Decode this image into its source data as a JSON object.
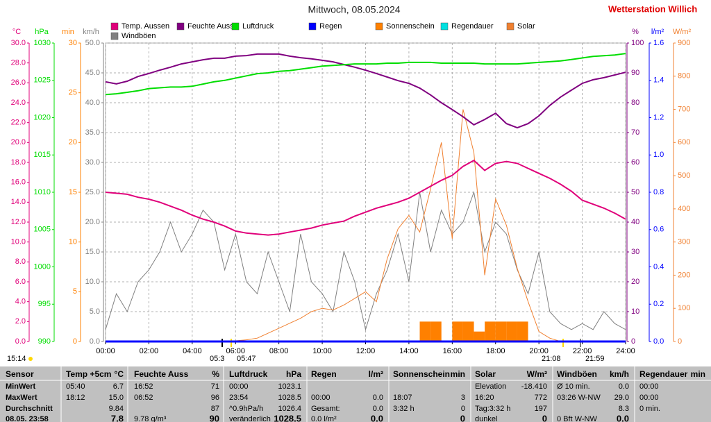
{
  "chart_data": {
    "type": "line",
    "title": "Mittwoch, 08.05.2024",
    "brand": "Wetterstation Willich",
    "x": [
      0,
      0.5,
      1,
      1.5,
      2,
      2.5,
      3,
      3.5,
      4,
      4.5,
      5,
      5.5,
      6,
      6.5,
      7,
      7.5,
      8,
      8.5,
      9,
      9.5,
      10,
      10.5,
      11,
      11.5,
      12,
      12.5,
      13,
      13.5,
      14,
      14.5,
      15,
      15.5,
      16,
      16.5,
      17,
      17.5,
      18,
      18.5,
      19,
      19.5,
      20,
      20.5,
      21,
      21.5,
      22,
      22.5,
      23,
      23.5,
      24
    ],
    "xlim": [
      0,
      24
    ],
    "xticks": [
      {
        "value": 0,
        "label": "00:00"
      },
      {
        "value": 2,
        "label": "02:00"
      },
      {
        "value": 4,
        "label": "04:00"
      },
      {
        "value": 6,
        "label": "06:00"
      },
      {
        "value": 8,
        "label": "08:00"
      },
      {
        "value": 10,
        "label": "10:00"
      },
      {
        "value": 12,
        "label": "12:00"
      },
      {
        "value": 14,
        "label": "14:00"
      },
      {
        "value": 16,
        "label": "16:00"
      },
      {
        "value": 18,
        "label": "18:00"
      },
      {
        "value": 20,
        "label": "20:00"
      },
      {
        "value": 22,
        "label": "22:00"
      },
      {
        "value": 24,
        "label": "24:00"
      }
    ],
    "grid": true,
    "series": [
      {
        "name": "Temp. Aussen",
        "color": "#e0007a",
        "unit": "°C",
        "ylim": [
          0,
          30
        ],
        "yticks": [
          {
            "value": 0,
            "label": "0.0"
          },
          {
            "value": 2,
            "label": "2.0"
          },
          {
            "value": 4,
            "label": "4.0"
          },
          {
            "value": 6,
            "label": "6.0"
          },
          {
            "value": 8,
            "label": "8.0"
          },
          {
            "value": 10,
            "label": "10.0"
          },
          {
            "value": 12,
            "label": "12.0"
          },
          {
            "value": 14,
            "label": "14.0"
          },
          {
            "value": 16,
            "label": "16.0"
          },
          {
            "value": 18,
            "label": "18.0"
          },
          {
            "value": 20,
            "label": "20.0"
          },
          {
            "value": 22,
            "label": "22.0"
          },
          {
            "value": 24,
            "label": "24.0"
          },
          {
            "value": 26,
            "label": "26.0"
          },
          {
            "value": 28,
            "label": "28.0"
          },
          {
            "value": 30,
            "label": "30.0"
          }
        ],
        "values": [
          15.0,
          14.9,
          14.8,
          14.5,
          14.3,
          14.0,
          13.6,
          13.2,
          12.7,
          12.3,
          12.0,
          11.6,
          11.1,
          10.9,
          10.8,
          10.7,
          10.8,
          11.0,
          11.2,
          11.4,
          11.7,
          11.9,
          12.1,
          12.6,
          13.0,
          13.4,
          13.7,
          14.0,
          14.4,
          15.0,
          15.6,
          16.2,
          16.7,
          17.6,
          18.2,
          17.2,
          17.9,
          18.1,
          17.9,
          17.4,
          16.9,
          16.4,
          15.8,
          15.1,
          14.2,
          13.8,
          13.4,
          12.9,
          12.3
        ]
      },
      {
        "name": "Feuchte Auss*",
        "color": "#800080",
        "unit": "%",
        "ylim": [
          0,
          100
        ],
        "yticks": [
          0,
          10,
          20,
          30,
          40,
          50,
          60,
          70,
          80,
          90,
          100
        ],
        "values": [
          87.0,
          86.3,
          87.2,
          88.8,
          89.8,
          90.9,
          91.9,
          93.0,
          93.7,
          94.4,
          94.9,
          94.9,
          95.6,
          95.8,
          96.3,
          96.3,
          96.3,
          95.6,
          95.1,
          94.7,
          94.2,
          93.7,
          92.8,
          91.9,
          90.9,
          89.8,
          88.6,
          87.4,
          86.5,
          84.9,
          82.6,
          80.0,
          77.7,
          75.3,
          72.6,
          74.4,
          76.5,
          73.0,
          71.6,
          73.0,
          75.6,
          79.1,
          81.9,
          84.2,
          86.5,
          87.7,
          88.4,
          89.3,
          90.2
        ]
      },
      {
        "name": "Luftdruck",
        "color": "#00dd00",
        "unit": "hPa",
        "ylim": [
          990,
          1030
        ],
        "yticks": [
          990,
          995,
          1000,
          1005,
          1010,
          1015,
          1020,
          1025,
          1030
        ],
        "values": [
          1023.1,
          1023.2,
          1023.4,
          1023.6,
          1023.9,
          1024.0,
          1024.1,
          1024.1,
          1024.2,
          1024.5,
          1024.8,
          1025.0,
          1025.3,
          1025.6,
          1025.9,
          1026.0,
          1026.2,
          1026.3,
          1026.5,
          1026.7,
          1026.9,
          1027.0,
          1027.1,
          1027.2,
          1027.2,
          1027.2,
          1027.3,
          1027.3,
          1027.4,
          1027.4,
          1027.4,
          1027.3,
          1027.3,
          1027.3,
          1027.3,
          1027.2,
          1027.2,
          1027.2,
          1027.2,
          1027.3,
          1027.4,
          1027.5,
          1027.6,
          1027.8,
          1028.0,
          1028.2,
          1028.3,
          1028.4,
          1028.6
        ]
      },
      {
        "name": "Regen",
        "color": "#0000ff",
        "unit": "l/m²",
        "ylim": [
          0,
          1.6
        ],
        "yticks": [
          {
            "value": 0,
            "label": "0.0"
          },
          0.2,
          0.4,
          0.6,
          0.8,
          {
            "value": 1,
            "label": "1.0"
          },
          1.2,
          1.4,
          1.6
        ],
        "values": [
          0,
          0,
          0,
          0,
          0,
          0,
          0,
          0,
          0,
          0,
          0,
          0,
          0,
          0,
          0,
          0,
          0,
          0,
          0,
          0,
          0,
          0,
          0,
          0,
          0,
          0,
          0,
          0,
          0,
          0,
          0,
          0,
          0,
          0,
          0,
          0,
          0,
          0,
          0,
          0,
          0,
          0,
          0,
          0,
          0,
          0,
          0,
          0,
          0
        ]
      },
      {
        "name": "Sonnenschein",
        "color": "#ff8000",
        "unit": "min",
        "ylim": [
          0,
          30
        ],
        "yticks": [
          0,
          5,
          10,
          15,
          20,
          25,
          30
        ],
        "values": [
          0,
          0,
          0,
          0,
          0,
          0,
          0,
          0,
          0,
          0,
          0,
          0,
          0,
          0,
          0,
          0,
          0,
          0,
          0,
          0,
          0,
          0,
          0,
          0,
          0,
          0,
          0,
          0,
          0,
          2,
          2,
          0,
          2,
          2,
          1,
          2,
          2,
          2,
          2,
          0,
          0,
          0,
          0,
          0,
          0,
          0,
          0,
          0,
          0
        ]
      },
      {
        "name": "Regendauer",
        "color": "#00e0e0"
      },
      {
        "name": "Solar",
        "color": "#f08030",
        "unit": "W/m²",
        "ylim": [
          0,
          900
        ],
        "yticks": [
          0,
          100,
          200,
          300,
          400,
          500,
          600,
          700,
          800,
          900
        ],
        "values": [
          0,
          0,
          0,
          0,
          0,
          0,
          0,
          0,
          0,
          0,
          0,
          0,
          2,
          5,
          10,
          25,
          40,
          55,
          70,
          90,
          100,
          95,
          110,
          130,
          150,
          120,
          250,
          340,
          380,
          330,
          460,
          600,
          310,
          700,
          570,
          200,
          430,
          350,
          220,
          120,
          30,
          10,
          0,
          0,
          0,
          0,
          0,
          0,
          0
        ]
      },
      {
        "name": "Windböen",
        "color": "#808080",
        "unit": "km/h",
        "ylim": [
          0,
          50
        ],
        "yticks": [
          {
            "value": 0,
            "label": "0.0"
          },
          {
            "value": 5,
            "label": "5.0"
          },
          {
            "value": 10,
            "label": "10.0"
          },
          {
            "value": 15,
            "label": "15.0"
          },
          {
            "value": 20,
            "label": "20.0"
          },
          {
            "value": 25,
            "label": "25.0"
          },
          {
            "value": 30,
            "label": "30.0"
          },
          {
            "value": 35,
            "label": "35.0"
          },
          {
            "value": 40,
            "label": "40.0"
          },
          {
            "value": 45,
            "label": "45.0"
          },
          {
            "value": 50,
            "label": "50.0"
          }
        ],
        "values": [
          2,
          8,
          5,
          10,
          12,
          15,
          20,
          15,
          18,
          22,
          20,
          12,
          18,
          10,
          8,
          15,
          10,
          5,
          18,
          10,
          8,
          5,
          15,
          10,
          2,
          8,
          12,
          18,
          10,
          25,
          15,
          22,
          18,
          20,
          25,
          15,
          20,
          18,
          12,
          8,
          15,
          5,
          3,
          2,
          3,
          2,
          5,
          3,
          2
        ]
      }
    ],
    "annotations": [
      "15:14",
      "05:3",
      "05:47",
      "21:08",
      "21:59"
    ]
  },
  "table": {
    "header": [
      "Sensor",
      "Temp +5cm",
      "°C",
      "Feuchte Auss",
      "%",
      "Luftdruck",
      "hPa",
      "Regen",
      "l/m²",
      "Sonnenschein",
      "min",
      "Solar",
      "W/m²",
      "Windböen",
      "km/h",
      "Regendauer",
      "min"
    ],
    "rows": [
      [
        "MinWert",
        "05:40",
        "6.7",
        "16:52",
        "71",
        "00:00",
        "1023.1",
        null,
        null,
        null,
        null,
        "Elevation",
        "-18.410",
        "Ø 10 min.",
        "0.0",
        "00:00",
        null
      ],
      [
        "MaxWert",
        "18:12",
        "15.0",
        "06:52",
        "96",
        "23:54",
        "1028.5",
        "00:00",
        "0.0",
        "18:07",
        "3",
        "16:20",
        "772",
        "03:26 W-NW",
        "29.0",
        "00:00",
        null
      ],
      [
        "Durchschnitt",
        null,
        "9.84",
        null,
        "87",
        "^0.9hPa/h",
        "1026.4",
        "Gesamt:",
        "0.0",
        "3:32 h",
        "0",
        "Tag:3:32 h",
        "197",
        null,
        "8.3",
        "0 min.",
        null
      ],
      [
        "08.05. 23:58",
        null,
        "7.8",
        "9.78 g/m³",
        "90",
        "veränderlich",
        "1028.5",
        "0.0 l/m²",
        "0.0",
        null,
        "0",
        "dunkel",
        "0",
        "0 Bft W-NW",
        "0.0",
        null,
        null
      ]
    ]
  }
}
